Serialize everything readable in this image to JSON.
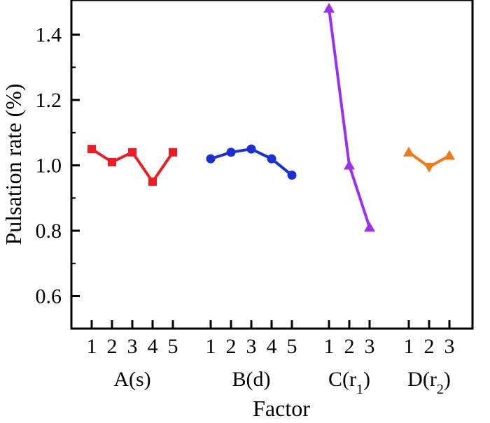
{
  "chart_data": {
    "type": "line",
    "xlabel": "Factor",
    "ylabel": "Pulsation rate (%)",
    "ylim": [
      0.5,
      1.5
    ],
    "y_ticks": [
      "0.6",
      "0.8",
      "1.0",
      "1.2",
      "1.4"
    ],
    "y_tick_values": [
      0.6,
      0.8,
      1.0,
      1.2,
      1.4
    ],
    "grid": false,
    "legend": "none",
    "series": [
      {
        "group_label": "A(s)",
        "levels": [
          "1",
          "2",
          "3",
          "4",
          "5"
        ],
        "values": [
          1.05,
          1.01,
          1.04,
          0.95,
          1.04
        ],
        "color": "#ee1c24",
        "marker": "square"
      },
      {
        "group_label": "B(d)",
        "levels": [
          "1",
          "2",
          "3",
          "4",
          "5"
        ],
        "values": [
          1.02,
          1.04,
          1.05,
          1.02,
          0.97
        ],
        "color": "#1a2fd6",
        "marker": "circle"
      },
      {
        "group_label_main": "C(r",
        "group_label_sub": "1",
        "group_label_end": ")",
        "levels": [
          "1",
          "2",
          "3"
        ],
        "values": [
          1.48,
          1.0,
          0.81
        ],
        "color": "#9b30f0",
        "marker": "triangle-up"
      },
      {
        "group_label_main": "D(r",
        "group_label_sub": "2",
        "group_label_end": ")",
        "levels": [
          "1",
          "2",
          "3"
        ],
        "values": [
          1.04,
          0.995,
          1.03
        ],
        "color": "#f07a1a",
        "marker": "triangle-mixed"
      }
    ]
  }
}
